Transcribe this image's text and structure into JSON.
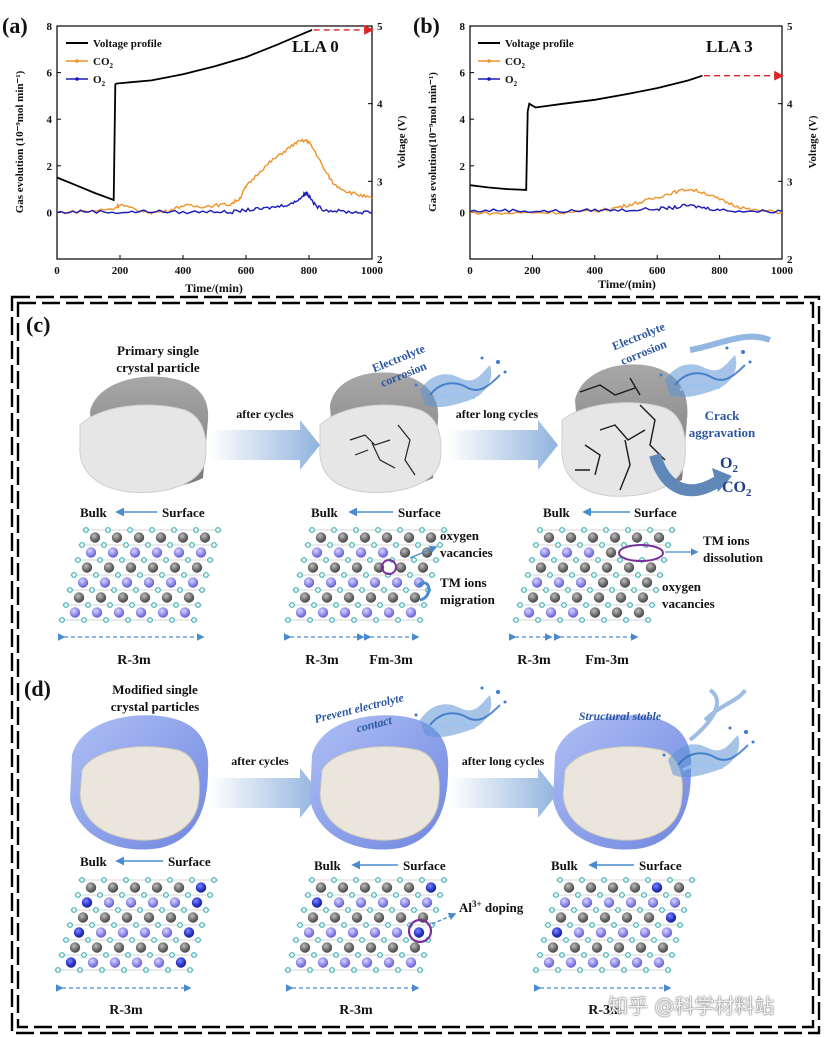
{
  "panel_labels": {
    "a": "(a)",
    "b": "(b)",
    "c": "(c)",
    "d": "(d)"
  },
  "chart_data": [
    {
      "type": "line",
      "title": "LLA 0",
      "xlabel": "Time/(min)",
      "ylabel": "Gas evolution (10⁻⁹mol min⁻¹)",
      "y2label": "Voltage (V)",
      "xlim": [
        0,
        1000
      ],
      "ylim": [
        -2,
        8
      ],
      "y2lim": [
        2,
        5
      ],
      "xticks": [
        0,
        200,
        400,
        600,
        800,
        1000
      ],
      "yticks": [
        0,
        2,
        4,
        6,
        8
      ],
      "y2ticks": [
        2,
        3,
        4,
        5
      ],
      "legend": [
        "Voltage profile",
        "CO2",
        "O2"
      ],
      "series": [
        {
          "name": "Voltage profile",
          "axis": "right",
          "color": "#000000",
          "x": [
            0,
            60,
            120,
            180,
            185,
            190,
            300,
            400,
            500,
            600,
            700,
            780,
            810
          ],
          "values": [
            3.05,
            2.95,
            2.85,
            2.76,
            4.25,
            4.26,
            4.3,
            4.38,
            4.48,
            4.6,
            4.76,
            4.9,
            4.95
          ]
        },
        {
          "name": "CO2",
          "axis": "left",
          "color": "#f0922b",
          "x": [
            0,
            100,
            180,
            200,
            250,
            300,
            350,
            400,
            450,
            500,
            550,
            580,
            600,
            640,
            680,
            720,
            760,
            790,
            800,
            820,
            850,
            880,
            920,
            960,
            1000
          ],
          "values": [
            0,
            0.05,
            0.15,
            0.35,
            0.1,
            0,
            0.05,
            0.3,
            0.25,
            0.3,
            0.35,
            0.6,
            1.1,
            1.7,
            2.2,
            2.6,
            3.0,
            3.1,
            3.0,
            2.6,
            1.8,
            1.2,
            0.9,
            0.75,
            0.6
          ]
        },
        {
          "name": "O2",
          "axis": "left",
          "color": "#1a1ab8",
          "x": [
            0,
            100,
            200,
            300,
            400,
            500,
            550,
            600,
            650,
            700,
            750,
            780,
            790,
            800,
            820,
            850,
            900,
            950,
            1000
          ],
          "values": [
            0,
            0.05,
            0,
            0.05,
            0,
            0.05,
            0,
            0.1,
            0.15,
            0.25,
            0.4,
            0.7,
            0.85,
            0.7,
            0.3,
            0.1,
            0.05,
            0,
            0
          ]
        },
        {
          "name": "Extension",
          "axis": "right",
          "color": "#e02424",
          "x": [
            815,
            1000
          ],
          "values": [
            4.95,
            4.95
          ]
        }
      ]
    },
    {
      "type": "line",
      "title": "LLA 3",
      "xlabel": "Time/(min)",
      "ylabel": "Gas evolution(10⁻⁹mol min⁻¹)",
      "y2label": "Voltage (V)",
      "xlim": [
        0,
        1000
      ],
      "ylim": [
        -2,
        8
      ],
      "y2lim": [
        2,
        5
      ],
      "xticks": [
        0,
        200,
        400,
        600,
        800,
        1000
      ],
      "yticks": [
        0,
        2,
        4,
        6,
        8
      ],
      "y2ticks": [
        2,
        3,
        4,
        5
      ],
      "legend": [
        "Voltage profile",
        "CO2",
        "O2"
      ],
      "series": [
        {
          "name": "Voltage profile",
          "axis": "right",
          "color": "#000000",
          "x": [
            0,
            60,
            120,
            180,
            185,
            190,
            210,
            300,
            400,
            500,
            600,
            700,
            745
          ],
          "values": [
            2.95,
            2.92,
            2.9,
            2.89,
            3.9,
            4.0,
            3.95,
            4.0,
            4.05,
            4.12,
            4.2,
            4.3,
            4.36
          ]
        },
        {
          "name": "CO2",
          "axis": "left",
          "color": "#f0922b",
          "x": [
            0,
            100,
            200,
            300,
            400,
            450,
            500,
            550,
            600,
            650,
            700,
            750,
            800,
            850,
            900,
            1000
          ],
          "values": [
            0,
            -0.05,
            0,
            0,
            0.05,
            0.15,
            0.3,
            0.45,
            0.65,
            0.85,
            1.0,
            0.85,
            0.55,
            0.3,
            0.1,
            0
          ]
        },
        {
          "name": "O2",
          "axis": "left",
          "color": "#1a1ab8",
          "x": [
            0,
            100,
            200,
            300,
            400,
            500,
            600,
            650,
            700,
            750,
            800,
            900,
            1000
          ],
          "values": [
            0.05,
            0.1,
            0.05,
            0.05,
            0.1,
            0.1,
            0.15,
            0.2,
            0.3,
            0.2,
            0.1,
            0.05,
            0.05
          ]
        },
        {
          "name": "Extension",
          "axis": "right",
          "color": "#e02424",
          "x": [
            750,
            1000
          ],
          "values": [
            4.36,
            4.36
          ]
        }
      ]
    }
  ],
  "panel_c": {
    "title": [
      "Primary single",
      "crystal particle"
    ],
    "arrow1": "after cycles",
    "arrow2": "after long cycles",
    "corrosion1": [
      "Electrolyte",
      "corrosion"
    ],
    "corrosion2": [
      "Electrolyte",
      "corrosion"
    ],
    "crack": [
      "Crack",
      "aggravation"
    ],
    "gas_o2": "O",
    "gas_o2_sub": "2",
    "gas_co2": "CO",
    "gas_co2_sub": "2",
    "bulk": "Bulk",
    "surface": "Surface",
    "oxygen_vacancies_1": [
      "oxygen",
      "vacancies"
    ],
    "tm_migration": [
      "TM ions",
      "migration"
    ],
    "tm_dissolution": [
      "TM ions",
      "dissolution"
    ],
    "oxygen_vacancies_2": [
      "oxygen",
      "vacancies"
    ],
    "phase_r": "R-3m",
    "phase_fm": "Fm-3m"
  },
  "panel_d": {
    "title": [
      "Modified single",
      "crystal particles"
    ],
    "arrow1": "after cycles",
    "arrow2": "after long cycles",
    "prevent": [
      "Prevent electrolyte",
      "contact"
    ],
    "stable": "Structural stable",
    "bulk": "Bulk",
    "surface": "Surface",
    "doping": "Al",
    "doping_sup": "3+",
    "doping_rest": " doping",
    "phase_r": "R-3m"
  },
  "watermark": "知乎 @科学材料站"
}
